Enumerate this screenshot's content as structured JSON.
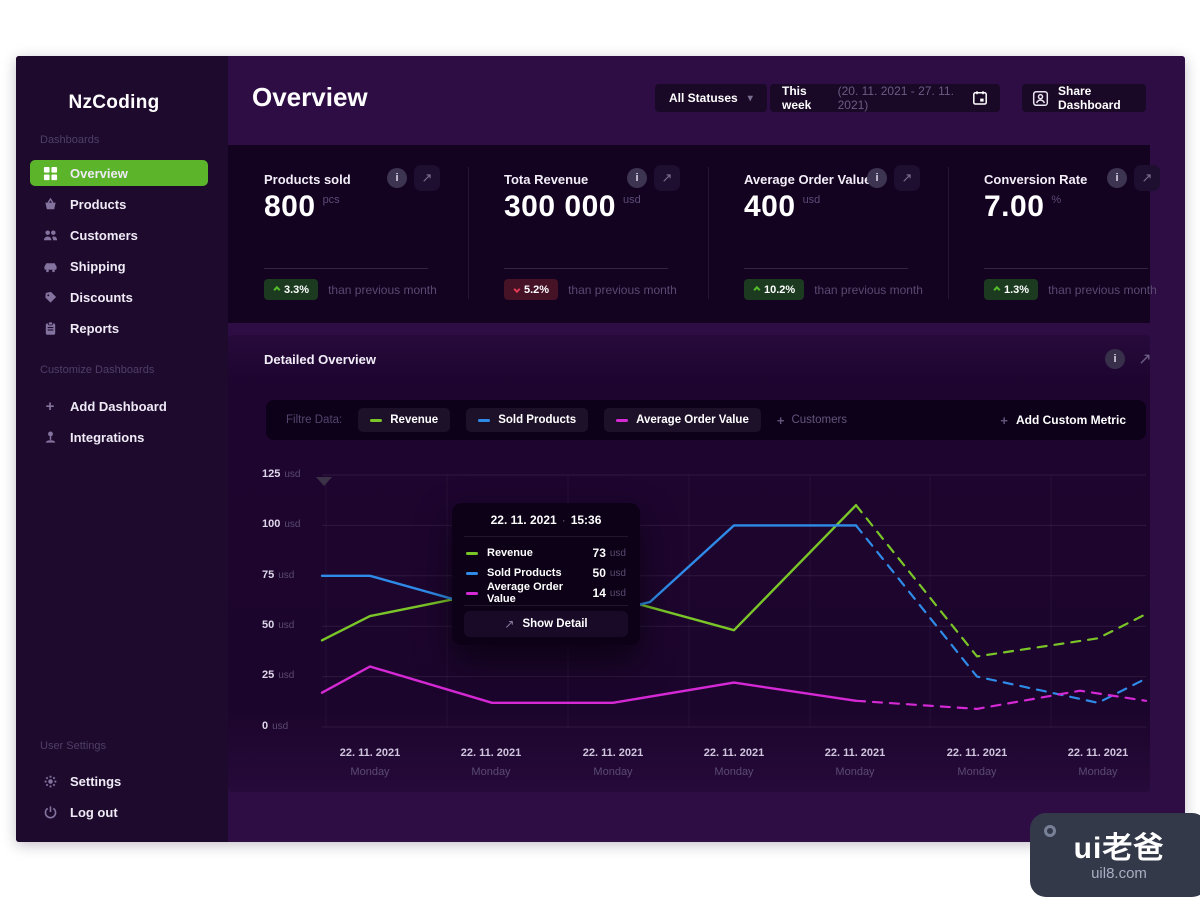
{
  "icons": {
    "info": "i",
    "expand": "↗",
    "chevron_down": "▾",
    "plus": "+"
  },
  "sidebar": {
    "logo": "NzCoding",
    "section_dashboards": "Dashboards",
    "items": [
      {
        "label": "Overview",
        "active": true
      },
      {
        "label": "Products"
      },
      {
        "label": "Customers"
      },
      {
        "label": "Shipping"
      },
      {
        "label": "Discounts"
      },
      {
        "label": "Reports"
      }
    ],
    "section_customize": "Customize Dashboards",
    "customize_items": [
      {
        "label": "Add Dashboard"
      },
      {
        "label": "Integrations"
      }
    ],
    "section_user": "User Settings",
    "user_items": [
      {
        "label": "Settings"
      },
      {
        "label": "Log out"
      }
    ]
  },
  "header": {
    "title": "Overview",
    "statuses": "All Statuses",
    "week_label": "This week",
    "week_range": "(20. 11. 2021 - 27. 11. 2021)",
    "share": "Share Dashboard"
  },
  "kpis": [
    {
      "title": "Products sold",
      "value": "800",
      "unit": "pcs",
      "delta": "3.3%",
      "dir": "up",
      "note": "than previous month"
    },
    {
      "title": "Tota Revenue",
      "value": "300 000",
      "unit": "usd",
      "delta": "5.2%",
      "dir": "down",
      "note": "than previous month"
    },
    {
      "title": "Average Order Value",
      "value": "400",
      "unit": "usd",
      "delta": "10.2%",
      "dir": "up",
      "note": "than previous month"
    },
    {
      "title": "Conversion Rate",
      "value": "7.00",
      "unit": "%",
      "delta": "1.3%",
      "dir": "up",
      "note": "than previous month"
    }
  ],
  "detail_panel": {
    "title": "Detailed Overview",
    "filter_label": "Filtre Data:",
    "legend": [
      {
        "label": "Revenue",
        "color": "#7ac528"
      },
      {
        "label": "Sold Products",
        "color": "#2f8be8"
      },
      {
        "label": "Average Order Value",
        "color": "#d429d4"
      }
    ],
    "inactive_metric": "Customers",
    "add_metric": "Add Custom Metric"
  },
  "tooltip": {
    "date": "22. 11. 2021",
    "sep": "·",
    "time": "15:36",
    "rows": [
      {
        "label": "Revenue",
        "value": "73",
        "unit": "usd",
        "color": "#7ac528"
      },
      {
        "label": "Sold Products",
        "value": "50",
        "unit": "usd",
        "color": "#2f8be8"
      },
      {
        "label": "Average Order Value",
        "value": "14",
        "unit": "usd",
        "color": "#d429d4"
      }
    ],
    "action": "Show Detail"
  },
  "chart_data": {
    "type": "line",
    "title": "Detailed Overview",
    "ylabel_unit": "usd",
    "ylim": [
      0,
      125
    ],
    "yticks": [
      0,
      25,
      50,
      75,
      100,
      125
    ],
    "grid": true,
    "legend_position": "top",
    "x_categories": [
      {
        "date": "22. 11. 2021",
        "day": "Monday"
      },
      {
        "date": "22. 11. 2021",
        "day": "Monday"
      },
      {
        "date": "22. 11. 2021",
        "day": "Monday"
      },
      {
        "date": "22. 11. 2021",
        "day": "Monday"
      },
      {
        "date": "22. 11. 2021",
        "day": "Monday"
      },
      {
        "date": "22. 11. 2021",
        "day": "Monday"
      },
      {
        "date": "22. 11. 2021",
        "day": "Monday"
      }
    ],
    "series": [
      {
        "name": "Revenue",
        "color": "#7ac528",
        "solid": [
          [
            94,
            43
          ],
          [
            142,
            55
          ],
          [
            322,
            73
          ],
          [
            506,
            48
          ],
          [
            628,
            110
          ]
        ],
        "dashed": [
          [
            628,
            110
          ],
          [
            749,
            35
          ],
          [
            870,
            44
          ],
          [
            918,
            56
          ]
        ]
      },
      {
        "name": "Sold Products",
        "color": "#2f8be8",
        "solid": [
          [
            94,
            75
          ],
          [
            142,
            75
          ],
          [
            322,
            50
          ],
          [
            422,
            62
          ],
          [
            506,
            100
          ],
          [
            628,
            100
          ]
        ],
        "dashed": [
          [
            628,
            100
          ],
          [
            749,
            25
          ],
          [
            870,
            12
          ],
          [
            918,
            24
          ]
        ]
      },
      {
        "name": "Average Order Value",
        "color": "#d429d4",
        "solid": [
          [
            94,
            17
          ],
          [
            142,
            30
          ],
          [
            264,
            12
          ],
          [
            385,
            12
          ],
          [
            506,
            22
          ],
          [
            628,
            13
          ]
        ],
        "dashed": [
          [
            628,
            13
          ],
          [
            749,
            9
          ],
          [
            852,
            18
          ],
          [
            918,
            13
          ]
        ]
      }
    ]
  },
  "watermark": {
    "brand": "ui老爸",
    "domain": "uil8.com"
  }
}
